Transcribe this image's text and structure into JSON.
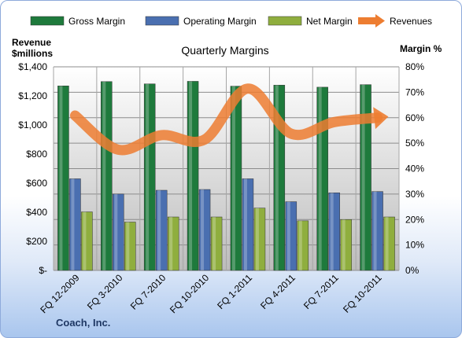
{
  "chart_data": {
    "type": "bar",
    "title": "Quarterly Margins",
    "categories": [
      "FQ 12-2009",
      "FQ 3-2010",
      "FQ 7-2010",
      "FQ 10-2010",
      "FQ 1-2011",
      "FQ 4-2011",
      "FQ 7-2011",
      "FQ 10-2011"
    ],
    "series": [
      {
        "name": "Gross Margin",
        "axis": "right",
        "kind": "bar",
        "color": "#1e7a3c",
        "values": [
          72.5,
          74.2,
          73.3,
          74.3,
          72.4,
          72.8,
          72.0,
          73.0
        ]
      },
      {
        "name": "Operating Margin",
        "axis": "right",
        "kind": "bar",
        "color": "#4a6fb0",
        "values": [
          36.0,
          30.0,
          31.5,
          31.8,
          36.0,
          27.0,
          30.5,
          31.0
        ]
      },
      {
        "name": "Net Margin",
        "axis": "right",
        "kind": "bar",
        "color": "#8fae3e",
        "values": [
          23.0,
          19.0,
          21.0,
          21.0,
          24.5,
          19.5,
          20.0,
          21.0
        ]
      },
      {
        "name": "Revenues",
        "axis": "left",
        "kind": "line",
        "color": "#ed7d31",
        "values": [
          1065,
          830,
          930,
          900,
          1250,
          940,
          1020,
          1050
        ]
      }
    ],
    "left_axis": {
      "title_line1": "Revenue",
      "title_line2": "$millions",
      "min": 0,
      "max": 1400,
      "step": 200,
      "tick_labels": [
        "$-",
        "$200",
        "$400",
        "$600",
        "$800",
        "$1,000",
        "$1,200",
        "$1,400"
      ]
    },
    "right_axis": {
      "title": "Margin %",
      "min": 0,
      "max": 80,
      "step": 10,
      "tick_labels": [
        "0%",
        "10%",
        "20%",
        "30%",
        "40%",
        "50%",
        "60%",
        "70%",
        "80%"
      ]
    },
    "grid": true,
    "legend_position": "top"
  },
  "footer": {
    "company": "Coach, Inc."
  }
}
